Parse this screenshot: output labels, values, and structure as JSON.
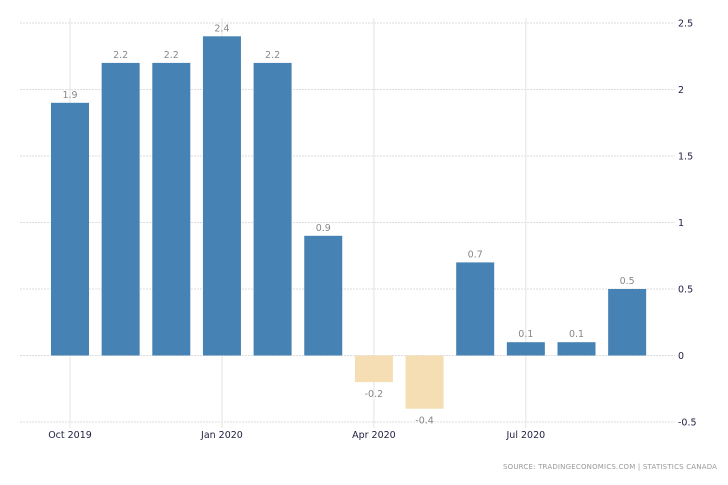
{
  "chart_data": {
    "type": "bar",
    "categories": [
      "Oct 2019",
      "Nov 2019",
      "Dec 2019",
      "Jan 2020",
      "Feb 2020",
      "Mar 2020",
      "Apr 2020",
      "May 2020",
      "Jun 2020",
      "Jul 2020",
      "Aug 2020",
      "Sep 2020"
    ],
    "values": [
      1.9,
      2.2,
      2.2,
      2.4,
      2.2,
      0.9,
      -0.2,
      -0.4,
      0.7,
      0.1,
      0.1,
      0.5
    ],
    "data_labels": [
      "1.9",
      "2.2",
      "2.2",
      "2.4",
      "2.2",
      "0.9",
      "-0.2",
      "-0.4",
      "0.7",
      "0.1",
      "0.1",
      "0.5"
    ],
    "x_tick_labels": [
      {
        "category": "Oct 2019",
        "label": "Oct 2019"
      },
      {
        "category": "Jan 2020",
        "label": "Jan 2020"
      },
      {
        "category": "Apr 2020",
        "label": "Apr 2020"
      },
      {
        "category": "Jul 2020",
        "label": "Jul 2020"
      }
    ],
    "y_ticks": [
      2.5,
      2,
      1.5,
      1,
      0.5,
      0,
      -0.5
    ],
    "y_tick_labels": [
      "2.5",
      "2",
      "1.5",
      "1",
      "0.5",
      "0",
      "-0.5"
    ],
    "ylim": [
      -0.5,
      2.5
    ],
    "y_axis_position": "right",
    "grid": true,
    "colors": {
      "positive": "#4682b4",
      "negative": "#f5deb3"
    },
    "title": "",
    "xlabel": "",
    "ylabel": ""
  },
  "source": "SOURCE:  TRADINGECONOMICS.COM  |  STATISTICS  CANADA"
}
